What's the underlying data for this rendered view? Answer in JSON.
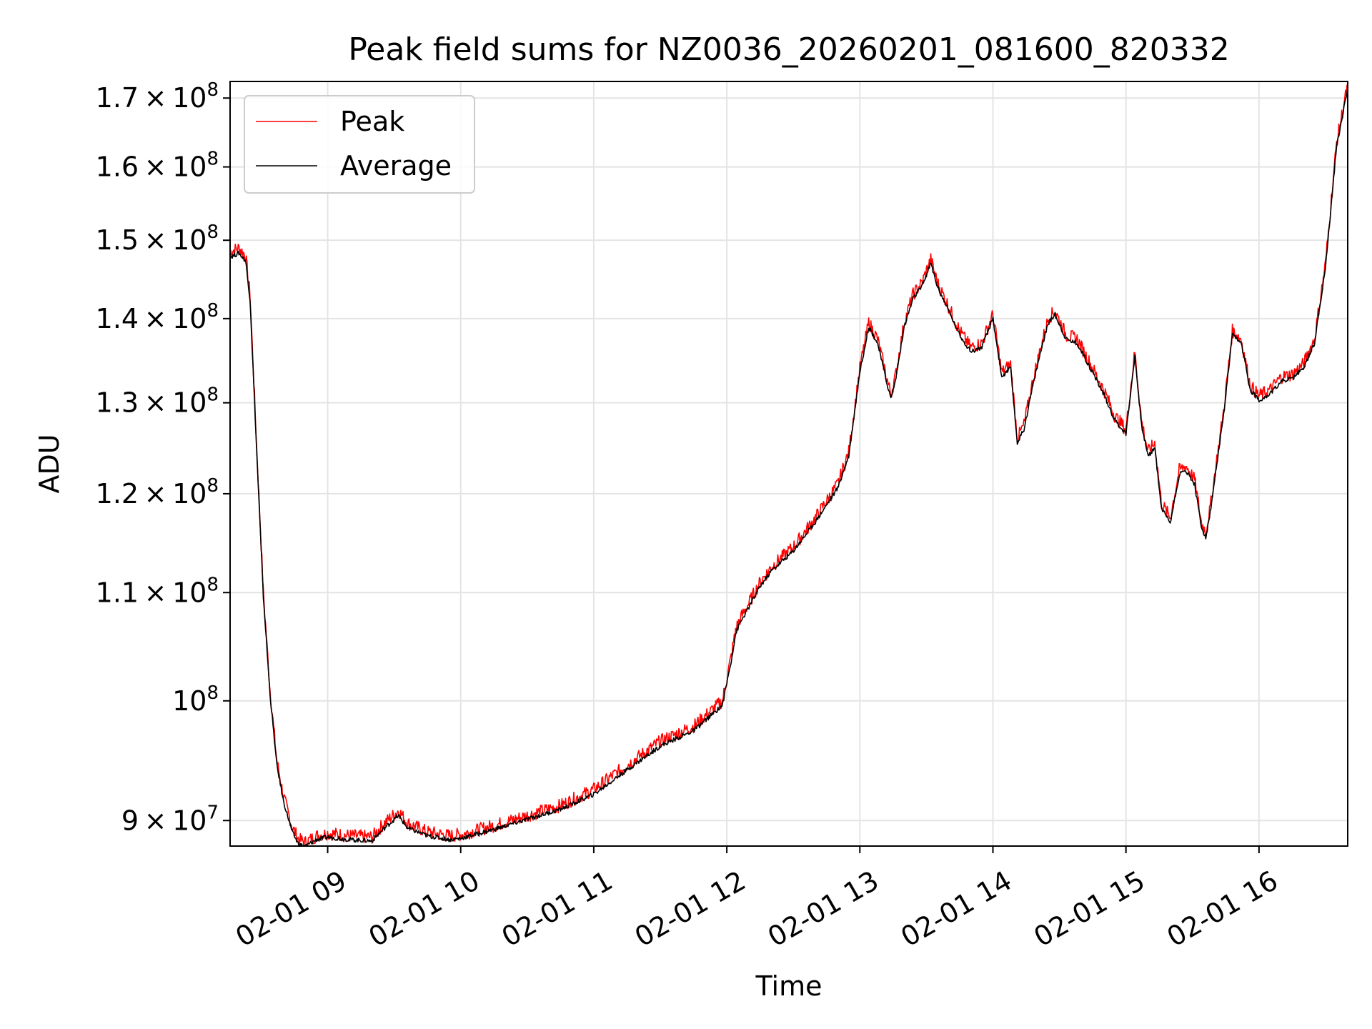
{
  "chart_data": {
    "type": "line",
    "title": "Peak field sums for NZ0036_20260201_081600_820332",
    "xlabel": "Time",
    "ylabel": "ADU",
    "yscale": "log",
    "xlim": [
      "2026-02-01 08:16",
      "2026-02-01 16:40"
    ],
    "ylim": [
      88000000,
      172500000
    ],
    "grid": true,
    "legend_position": "top-left",
    "x_ticks": [
      {
        "value": "2026-02-01 09:00",
        "label": "02-01 09"
      },
      {
        "value": "2026-02-01 10:00",
        "label": "02-01 10"
      },
      {
        "value": "2026-02-01 11:00",
        "label": "02-01 11"
      },
      {
        "value": "2026-02-01 12:00",
        "label": "02-01 12"
      },
      {
        "value": "2026-02-01 13:00",
        "label": "02-01 13"
      },
      {
        "value": "2026-02-01 14:00",
        "label": "02-01 14"
      },
      {
        "value": "2026-02-01 15:00",
        "label": "02-01 15"
      },
      {
        "value": "2026-02-01 16:00",
        "label": "02-01 16"
      }
    ],
    "y_ticks": [
      {
        "value": 90000000,
        "mant": "9",
        "exp": "7"
      },
      {
        "value": 100000000,
        "mant": "",
        "exp": "8"
      },
      {
        "value": 110000000,
        "mant": "1.1",
        "exp": "8"
      },
      {
        "value": 120000000,
        "mant": "1.2",
        "exp": "8"
      },
      {
        "value": 130000000,
        "mant": "1.3",
        "exp": "8"
      },
      {
        "value": 140000000,
        "mant": "1.4",
        "exp": "8"
      },
      {
        "value": 150000000,
        "mant": "1.5",
        "exp": "8"
      },
      {
        "value": 160000000,
        "mant": "1.6",
        "exp": "8"
      },
      {
        "value": 170000000,
        "mant": "1.7",
        "exp": "8"
      }
    ],
    "x": [
      "2026-02-01 08:16",
      "2026-02-01 08:20",
      "2026-02-01 08:23",
      "2026-02-01 08:25",
      "2026-02-01 08:28",
      "2026-02-01 08:31",
      "2026-02-01 08:34",
      "2026-02-01 08:37",
      "2026-02-01 08:40",
      "2026-02-01 08:44",
      "2026-02-01 08:47",
      "2026-02-01 08:50",
      "2026-02-01 08:55",
      "2026-02-01 09:00",
      "2026-02-01 09:10",
      "2026-02-01 09:20",
      "2026-02-01 09:25",
      "2026-02-01 09:32",
      "2026-02-01 09:36",
      "2026-02-01 09:45",
      "2026-02-01 09:55",
      "2026-02-01 10:00",
      "2026-02-01 10:15",
      "2026-02-01 10:30",
      "2026-02-01 10:45",
      "2026-02-01 11:00",
      "2026-02-01 11:15",
      "2026-02-01 11:30",
      "2026-02-01 11:45",
      "2026-02-01 11:58",
      "2026-02-01 12:02",
      "2026-02-01 12:04",
      "2026-02-01 12:06",
      "2026-02-01 12:10",
      "2026-02-01 12:15",
      "2026-02-01 12:20",
      "2026-02-01 12:30",
      "2026-02-01 12:40",
      "2026-02-01 12:50",
      "2026-02-01 12:55",
      "2026-02-01 13:00",
      "2026-02-01 13:04",
      "2026-02-01 13:08",
      "2026-02-01 13:12",
      "2026-02-01 13:14",
      "2026-02-01 13:16",
      "2026-02-01 13:20",
      "2026-02-01 13:24",
      "2026-02-01 13:28",
      "2026-02-01 13:32",
      "2026-02-01 13:35",
      "2026-02-01 13:40",
      "2026-02-01 13:45",
      "2026-02-01 13:50",
      "2026-02-01 13:55",
      "2026-02-01 14:00",
      "2026-02-01 14:04",
      "2026-02-01 14:08",
      "2026-02-01 14:11",
      "2026-02-01 14:14",
      "2026-02-01 14:18",
      "2026-02-01 14:22",
      "2026-02-01 14:25",
      "2026-02-01 14:28",
      "2026-02-01 14:33",
      "2026-02-01 14:38",
      "2026-02-01 14:45",
      "2026-02-01 14:50",
      "2026-02-01 14:55",
      "2026-02-01 15:00",
      "2026-02-01 15:04",
      "2026-02-01 15:07",
      "2026-02-01 15:10",
      "2026-02-01 15:13",
      "2026-02-01 15:16",
      "2026-02-01 15:20",
      "2026-02-01 15:24",
      "2026-02-01 15:27",
      "2026-02-01 15:31",
      "2026-02-01 15:34",
      "2026-02-01 15:36",
      "2026-02-01 15:38",
      "2026-02-01 15:40",
      "2026-02-01 15:44",
      "2026-02-01 15:48",
      "2026-02-01 15:52",
      "2026-02-01 15:56",
      "2026-02-01 16:00",
      "2026-02-01 16:05",
      "2026-02-01 16:10",
      "2026-02-01 16:15",
      "2026-02-01 16:20",
      "2026-02-01 16:25",
      "2026-02-01 16:30",
      "2026-02-01 16:35",
      "2026-02-01 16:40"
    ],
    "series": [
      {
        "name": "Peak",
        "color": "#ff0000",
        "values": [
          148500000,
          149000000,
          148000000,
          143000000,
          125000000,
          110000000,
          101000000,
          95000000,
          92000000,
          89500000,
          88500000,
          88300000,
          88800000,
          89000000,
          88800000,
          88700000,
          89700000,
          90800000,
          89800000,
          89100000,
          88800000,
          88900000,
          89600000,
          90400000,
          91200000,
          92500000,
          94500000,
          96500000,
          97800000,
          100000000,
          104000000,
          106500000,
          107500000,
          109000000,
          111000000,
          112500000,
          114500000,
          117500000,
          121000000,
          124500000,
          134000000,
          139500000,
          137500000,
          133000000,
          131000000,
          133000000,
          139500000,
          143000000,
          144500000,
          147500000,
          144500000,
          141500000,
          138500000,
          136500000,
          137000000,
          140500000,
          133500000,
          134500000,
          126000000,
          127500000,
          132500000,
          137000000,
          140000000,
          141000000,
          138000000,
          137500000,
          134000000,
          131500000,
          128500000,
          127000000,
          136000000,
          128000000,
          124500000,
          125500000,
          119000000,
          117500000,
          122500000,
          123000000,
          121500000,
          117000000,
          116000000,
          118500000,
          122000000,
          129000000,
          138500000,
          137500000,
          132000000,
          130800000,
          131500000,
          133000000,
          133300000,
          134500000,
          137500000,
          147000000,
          163500000,
          172000000
        ]
      },
      {
        "name": "Average",
        "color": "#000000",
        "values": [
          147800000,
          148300000,
          147300000,
          142400000,
          124500000,
          109600000,
          100600000,
          94600000,
          91600000,
          89100000,
          88100000,
          88000000,
          88500000,
          88700000,
          88500000,
          88400000,
          89300000,
          90400000,
          89400000,
          88800000,
          88500000,
          88600000,
          89300000,
          90100000,
          90900000,
          92100000,
          94100000,
          96100000,
          97400000,
          99600000,
          103600000,
          106100000,
          107100000,
          108600000,
          110600000,
          112100000,
          114100000,
          117100000,
          120600000,
          124100000,
          133600000,
          139000000,
          137000000,
          132500000,
          130500000,
          132500000,
          139000000,
          142500000,
          144000000,
          147000000,
          144000000,
          141000000,
          138000000,
          136000000,
          136500000,
          140000000,
          133000000,
          134000000,
          125500000,
          127000000,
          132000000,
          136500000,
          139500000,
          140500000,
          137500000,
          137000000,
          133500000,
          131000000,
          128000000,
          126500000,
          135500000,
          127500000,
          124000000,
          125000000,
          118500000,
          117000000,
          122000000,
          122500000,
          121000000,
          116500000,
          115500000,
          118000000,
          121500000,
          128500000,
          138000000,
          137000000,
          131500000,
          130300000,
          131000000,
          132500000,
          132800000,
          134000000,
          137000000,
          146500000,
          163000000,
          171500000
        ]
      }
    ]
  }
}
